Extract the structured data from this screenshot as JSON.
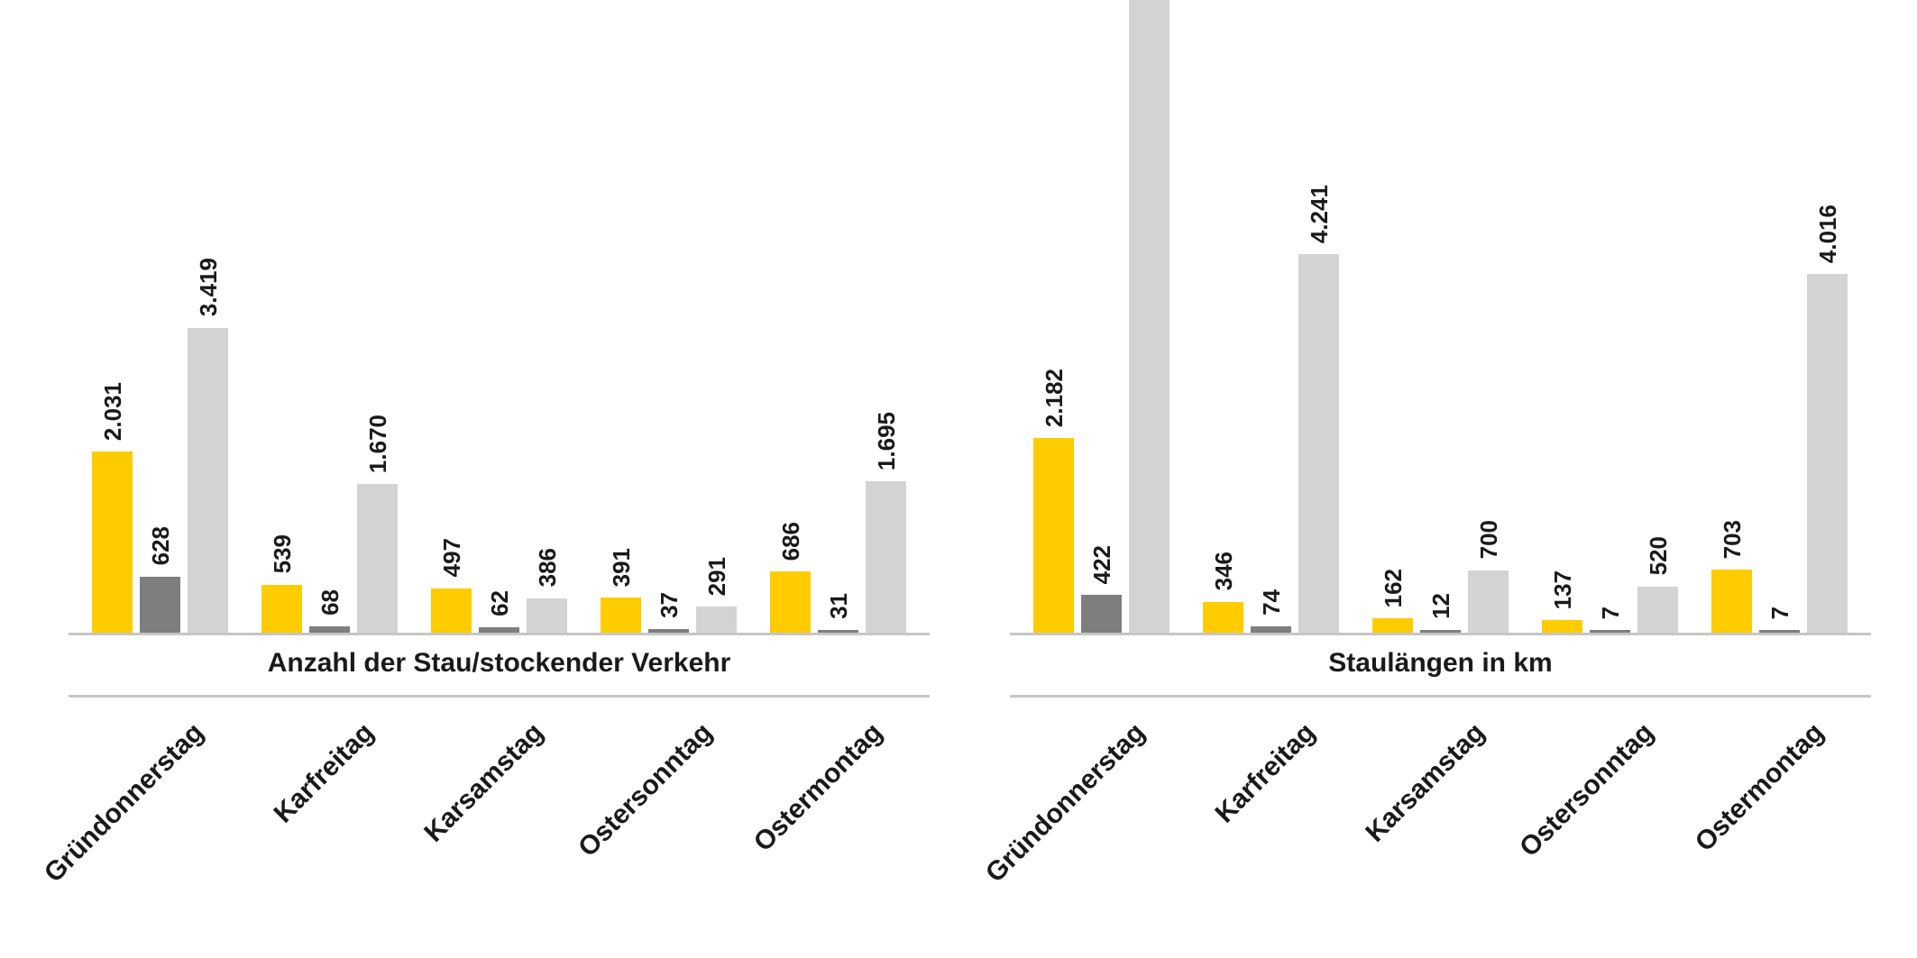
{
  "colors": {
    "yellow": "#FFCC00",
    "dark_gray": "#7E7E7E",
    "light_gray": "#D3D3D3",
    "axis_line": "#C6C6C6",
    "text": "#1A1A1A",
    "background": "#FFFFFF"
  },
  "chart_data": [
    {
      "type": "bar",
      "title": "Anzahl der Stau/stockender Verkehr",
      "categories": [
        "Gründonnerstag",
        "Karfreitag",
        "Karsamstag",
        "Ostersonntag",
        "Ostermontag"
      ],
      "series": [
        {
          "name": "yellow",
          "color": "#FFCC00",
          "values": [
            2031,
            539,
            497,
            391,
            686
          ],
          "labels": [
            "2.031",
            "539",
            "497",
            "391",
            "686"
          ]
        },
        {
          "name": "dark-gray",
          "color": "#7E7E7E",
          "values": [
            628,
            68,
            62,
            37,
            31
          ],
          "labels": [
            "628",
            "68",
            "62",
            "37",
            "31"
          ]
        },
        {
          "name": "light-gray",
          "color": "#D3D3D3",
          "values": [
            3419,
            1670,
            386,
            291,
            1695
          ],
          "labels": [
            "3.419",
            "1.670",
            "386",
            "291",
            "1.695"
          ]
        }
      ],
      "ylim": [
        0,
        7120
      ],
      "grid": false,
      "legend": null
    },
    {
      "type": "bar",
      "title": "Staulängen in km",
      "categories": [
        "Gründonnerstag",
        "Karfreitag",
        "Karsamstag",
        "Ostersonntag",
        "Ostermontag"
      ],
      "series": [
        {
          "name": "yellow",
          "color": "#FFCC00",
          "values": [
            2182,
            346,
            162,
            137,
            703
          ],
          "labels": [
            "2.182",
            "346",
            "162",
            "137",
            "703"
          ]
        },
        {
          "name": "dark-gray",
          "color": "#7E7E7E",
          "values": [
            422,
            74,
            12,
            7,
            7
          ],
          "labels": [
            "422",
            "74",
            "12",
            "7",
            "7"
          ]
        },
        {
          "name": "light-gray",
          "color": "#D3D3D3",
          "values": [
            7300,
            4241,
            700,
            520,
            4016
          ],
          "labels": [
            "",
            "4.241",
            "700",
            "520",
            "4.016"
          ]
        }
      ],
      "clipped_bar": {
        "series": "light-gray",
        "category": "Gründonnerstag",
        "note": "bar extends beyond top edge of image; value label not visible; value estimated",
        "estimated_value": 7300
      },
      "ylim": [
        0,
        7120
      ],
      "grid": false,
      "legend": null
    }
  ]
}
